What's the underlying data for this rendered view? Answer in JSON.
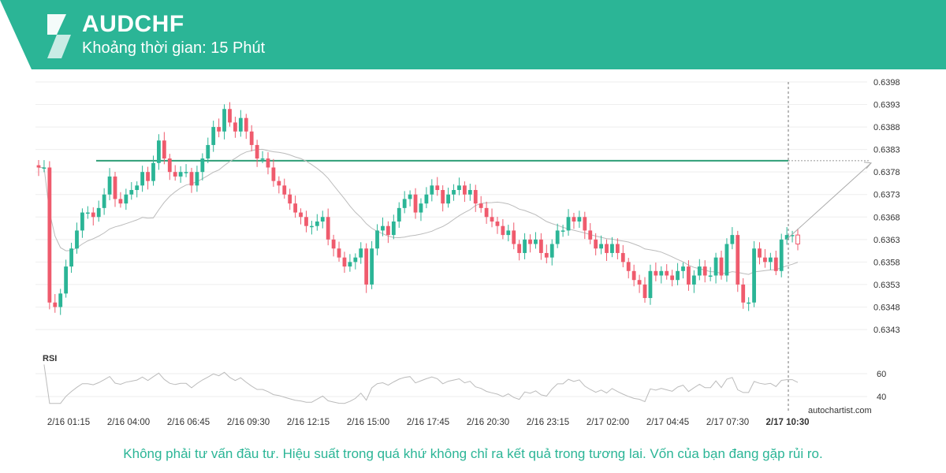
{
  "header": {
    "symbol": "AUDCHF",
    "timeframe": "Khoảng thời gian: 15 Phút",
    "brand_color": "#2bb596",
    "logo_icon": "autochartist-logo-icon"
  },
  "watermark": "autochartist.com",
  "disclaimer": "Không phải tư vấn đầu tư. Hiệu suất trong quá khứ không chỉ ra kết quả trong tương lai. Vốn của bạn đang gặp rủi ro.",
  "chart_data": {
    "type": "candlestick",
    "y_ticks": [
      "0.6398",
      "0.6393",
      "0.6388",
      "0.6383",
      "0.6378",
      "0.6373",
      "0.6368",
      "0.6363",
      "0.6358",
      "0.6353",
      "0.6348",
      "0.6343"
    ],
    "ylim": [
      0.63385,
      0.64005
    ],
    "x_ticks": [
      "2/16 01:15",
      "2/16 04:00",
      "2/16 06:45",
      "2/16 09:30",
      "2/16 12:15",
      "2/16 15:00",
      "2/16 17:45",
      "2/16 20:30",
      "2/16 23:15",
      "2/17 02:00",
      "2/17 04:45",
      "2/17 07:30",
      "2/17 10:30"
    ],
    "current_time_label": "2/17 10:30",
    "resistance_level": 0.63805,
    "forecast_target": 0.638,
    "up_color": "#2bb596",
    "down_color": "#ef5b6d",
    "ma_color": "#bbbbbb",
    "level_color": "#2e9e77",
    "close": [
      0.6379,
      0.6379,
      0.6349,
      0.6348,
      0.6351,
      0.6357,
      0.6361,
      0.6365,
      0.6369,
      0.6369,
      0.6368,
      0.637,
      0.6373,
      0.6377,
      0.6372,
      0.6371,
      0.6373,
      0.6374,
      0.6375,
      0.6378,
      0.6376,
      0.638,
      0.6385,
      0.6381,
      0.6378,
      0.6377,
      0.6378,
      0.6378,
      0.6375,
      0.6378,
      0.6381,
      0.6384,
      0.6388,
      0.6387,
      0.6392,
      0.6389,
      0.6387,
      0.639,
      0.6387,
      0.6384,
      0.6381,
      0.6381,
      0.6379,
      0.6376,
      0.6375,
      0.6373,
      0.6371,
      0.6369,
      0.6368,
      0.6366,
      0.6366,
      0.6367,
      0.6368,
      0.6363,
      0.6361,
      0.6359,
      0.6357,
      0.6358,
      0.6359,
      0.6361,
      0.6353,
      0.6361,
      0.6365,
      0.6366,
      0.6364,
      0.6367,
      0.637,
      0.6372,
      0.6373,
      0.6369,
      0.6371,
      0.6373,
      0.6375,
      0.6374,
      0.6371,
      0.6373,
      0.6374,
      0.6375,
      0.6373,
      0.6374,
      0.6371,
      0.637,
      0.6368,
      0.6367,
      0.6366,
      0.6364,
      0.6365,
      0.6362,
      0.636,
      0.6363,
      0.6362,
      0.6363,
      0.636,
      0.6359,
      0.6362,
      0.6365,
      0.6365,
      0.6368,
      0.6367,
      0.6368,
      0.6365,
      0.6363,
      0.6361,
      0.6362,
      0.636,
      0.6362,
      0.636,
      0.6358,
      0.6356,
      0.6354,
      0.6353,
      0.635,
      0.6356,
      0.6355,
      0.6356,
      0.6355,
      0.6354,
      0.6356,
      0.6357,
      0.6353,
      0.6355,
      0.6357,
      0.6355,
      0.6355,
      0.6359,
      0.6355,
      0.6362,
      0.6364,
      0.6353,
      0.6349,
      0.6349,
      0.6361,
      0.6359,
      0.6358,
      0.6359,
      0.6356,
      0.6363,
      0.6364,
      0.6364,
      0.6362
    ],
    "rsi_ticks": [
      "60",
      "40"
    ],
    "rsi_label": "RSI"
  }
}
